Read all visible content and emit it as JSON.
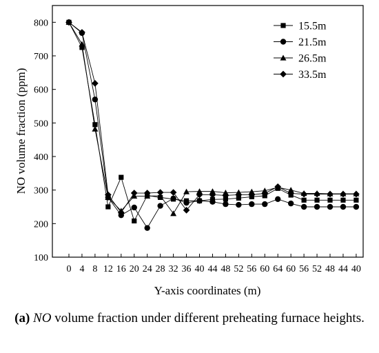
{
  "chart_data": {
    "type": "line",
    "xlabel": "Y-axis coordinates (m)",
    "ylabel": "NO volume fraction (ppm)",
    "ylim": [
      100,
      850
    ],
    "yticks": [
      100,
      200,
      300,
      400,
      500,
      600,
      700,
      800
    ],
    "categories": [
      "0",
      "4",
      "8",
      "12",
      "16",
      "20",
      "24",
      "28",
      "32",
      "36",
      "40",
      "44",
      "48",
      "52",
      "56",
      "60",
      "64",
      "60",
      "56",
      "52",
      "48",
      "44",
      "40"
    ],
    "legend_position": "top-right",
    "grid": false,
    "series": [
      {
        "name": "15.5m",
        "marker": "square",
        "values": [
          800,
          725,
          495,
          250,
          338,
          208,
          284,
          278,
          273,
          268,
          268,
          272,
          273,
          276,
          280,
          283,
          305,
          285,
          270,
          270,
          270,
          270,
          270
        ]
      },
      {
        "name": "21.5m",
        "marker": "circle",
        "values": [
          800,
          768,
          570,
          278,
          225,
          248,
          187,
          253,
          275,
          262,
          268,
          265,
          258,
          256,
          258,
          258,
          273,
          260,
          250,
          250,
          250,
          250,
          250
        ]
      },
      {
        "name": "26.5m",
        "marker": "triangle",
        "values": [
          800,
          735,
          482,
          278,
          238,
          282,
          282,
          283,
          230,
          295,
          296,
          296,
          292,
          293,
          295,
          298,
          308,
          300,
          290,
          290,
          289,
          289,
          289
        ]
      },
      {
        "name": "33.5m",
        "marker": "diamond",
        "values": [
          800,
          770,
          618,
          286,
          233,
          291,
          291,
          293,
          293,
          240,
          286,
          286,
          284,
          286,
          286,
          290,
          310,
          290,
          288,
          288,
          288,
          288,
          288
        ]
      }
    ]
  },
  "caption": {
    "label": "(a)",
    "chem": "NO",
    "text": " volume fraction under different preheating furnace heights."
  }
}
